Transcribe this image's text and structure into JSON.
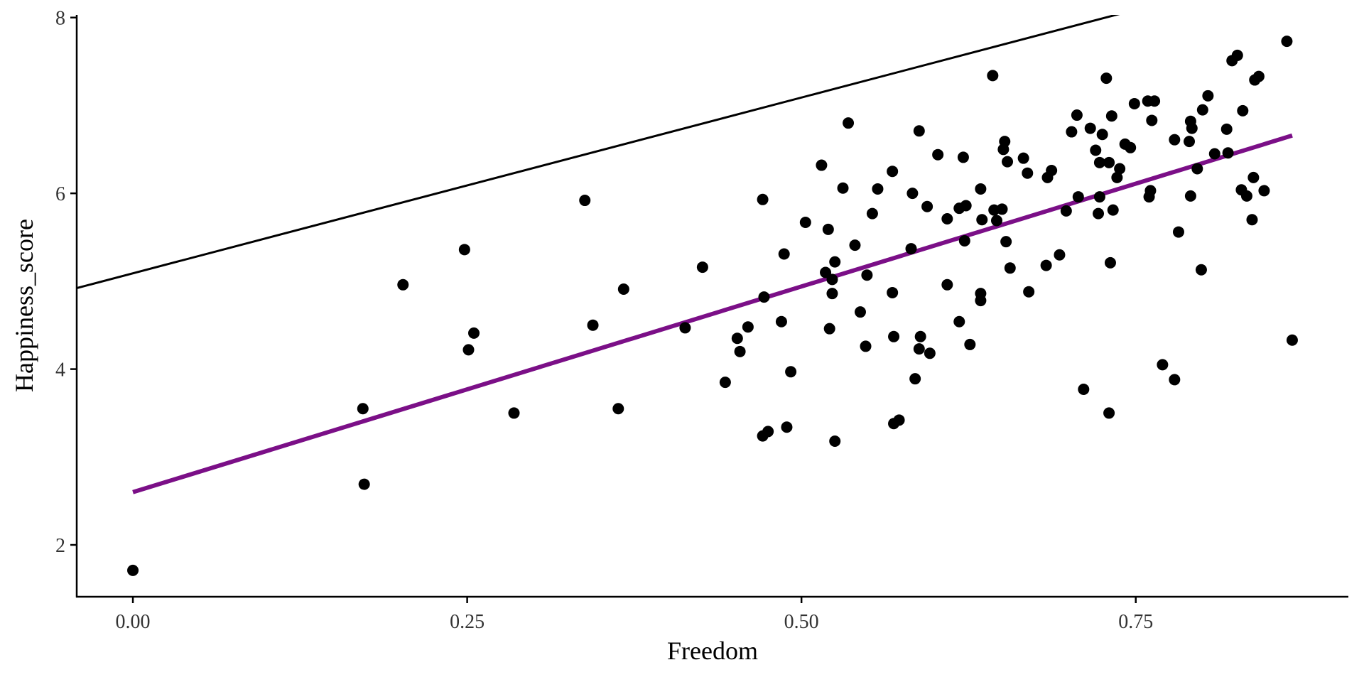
{
  "chart_data": {
    "type": "scatter",
    "title": "",
    "xlabel": "Freedom",
    "ylabel": "Happiness_score",
    "xlim": [
      -0.042,
      0.909
    ],
    "ylim": [
      1.41,
      8.03
    ],
    "xticks": [
      0,
      0.25,
      0.5,
      0.75
    ],
    "xtick_labels": [
      "0.00",
      "0.25",
      "0.50",
      "0.75"
    ],
    "yticks": [
      2,
      4,
      6,
      8
    ],
    "ytick_labels": [
      "2",
      "4",
      "6",
      "8"
    ],
    "grid": false,
    "colors": {
      "points": "#000000",
      "fit_line": "#7B0F87",
      "reference_line": "#000000"
    },
    "lines": [
      {
        "role": "reference",
        "intercept": 5.09,
        "slope": 4.0,
        "color": "#000000"
      },
      {
        "role": "fit",
        "intercept": 2.6,
        "slope": 4.68,
        "x_range": [
          0,
          0.867
        ],
        "color": "#7B0F87"
      }
    ],
    "points": [
      [
        0,
        1.71
      ],
      [
        0.172,
        3.55
      ],
      [
        0.173,
        2.69
      ],
      [
        0.202,
        4.96
      ],
      [
        0.248,
        5.36
      ],
      [
        0.251,
        4.22
      ],
      [
        0.255,
        4.41
      ],
      [
        0.285,
        3.5
      ],
      [
        0.338,
        5.92
      ],
      [
        0.344,
        4.5
      ],
      [
        0.363,
        3.55
      ],
      [
        0.367,
        4.91
      ],
      [
        0.413,
        4.47
      ],
      [
        0.426,
        5.16
      ],
      [
        0.443,
        3.85
      ],
      [
        0.452,
        4.35
      ],
      [
        0.454,
        4.2
      ],
      [
        0.46,
        4.48
      ],
      [
        0.471,
        5.93
      ],
      [
        0.472,
        4.82
      ],
      [
        0.471,
        3.24
      ],
      [
        0.475,
        3.29
      ],
      [
        0.485,
        4.54
      ],
      [
        0.487,
        5.31
      ],
      [
        0.489,
        3.34
      ],
      [
        0.492,
        3.97
      ],
      [
        0.503,
        5.67
      ],
      [
        0.515,
        6.32
      ],
      [
        0.518,
        5.1
      ],
      [
        0.52,
        5.59
      ],
      [
        0.521,
        4.46
      ],
      [
        0.523,
        5.02
      ],
      [
        0.523,
        4.86
      ],
      [
        0.525,
        5.22
      ],
      [
        0.525,
        3.18
      ],
      [
        0.531,
        6.06
      ],
      [
        0.535,
        6.8
      ],
      [
        0.54,
        5.41
      ],
      [
        0.544,
        4.65
      ],
      [
        0.549,
        5.07
      ],
      [
        0.548,
        4.26
      ],
      [
        0.553,
        5.77
      ],
      [
        0.557,
        6.05
      ],
      [
        0.568,
        6.25
      ],
      [
        0.568,
        4.87
      ],
      [
        0.569,
        4.37
      ],
      [
        0.569,
        3.38
      ],
      [
        0.573,
        3.42
      ],
      [
        0.582,
        5.37
      ],
      [
        0.583,
        6.0
      ],
      [
        0.585,
        3.89
      ],
      [
        0.588,
        6.71
      ],
      [
        0.589,
        4.37
      ],
      [
        0.588,
        4.23
      ],
      [
        0.594,
        5.85
      ],
      [
        0.596,
        4.18
      ],
      [
        0.602,
        6.44
      ],
      [
        0.609,
        5.71
      ],
      [
        0.609,
        4.96
      ],
      [
        0.618,
        5.83
      ],
      [
        0.618,
        4.54
      ],
      [
        0.621,
        6.41
      ],
      [
        0.622,
        5.46
      ],
      [
        0.623,
        5.86
      ],
      [
        0.626,
        4.28
      ],
      [
        0.634,
        6.05
      ],
      [
        0.634,
        4.86
      ],
      [
        0.634,
        4.78
      ],
      [
        0.635,
        5.7
      ],
      [
        0.643,
        7.34
      ],
      [
        0.644,
        5.81
      ],
      [
        0.646,
        5.69
      ],
      [
        0.65,
        5.82
      ],
      [
        0.651,
        6.5
      ],
      [
        0.652,
        6.59
      ],
      [
        0.653,
        5.45
      ],
      [
        0.654,
        6.36
      ],
      [
        0.656,
        5.15
      ],
      [
        0.666,
        6.4
      ],
      [
        0.669,
        6.23
      ],
      [
        0.67,
        4.88
      ],
      [
        0.683,
        5.18
      ],
      [
        0.684,
        6.18
      ],
      [
        0.687,
        6.26
      ],
      [
        0.693,
        5.3
      ],
      [
        0.698,
        5.8
      ],
      [
        0.702,
        6.7
      ],
      [
        0.706,
        6.89
      ],
      [
        0.707,
        5.96
      ],
      [
        0.711,
        3.77
      ],
      [
        0.716,
        6.74
      ],
      [
        0.72,
        6.49
      ],
      [
        0.722,
        5.77
      ],
      [
        0.723,
        6.35
      ],
      [
        0.723,
        5.96
      ],
      [
        0.725,
        6.67
      ],
      [
        0.728,
        7.31
      ],
      [
        0.73,
        6.35
      ],
      [
        0.73,
        3.5
      ],
      [
        0.731,
        5.21
      ],
      [
        0.732,
        6.88
      ],
      [
        0.733,
        5.81
      ],
      [
        0.736,
        6.18
      ],
      [
        0.738,
        6.28
      ],
      [
        0.742,
        6.56
      ],
      [
        0.746,
        6.52
      ],
      [
        0.749,
        7.02
      ],
      [
        0.759,
        7.05
      ],
      [
        0.76,
        5.96
      ],
      [
        0.761,
        6.03
      ],
      [
        0.762,
        6.83
      ],
      [
        0.764,
        7.05
      ],
      [
        0.77,
        4.05
      ],
      [
        0.779,
        6.61
      ],
      [
        0.779,
        3.88
      ],
      [
        0.782,
        5.56
      ],
      [
        0.79,
        6.59
      ],
      [
        0.791,
        6.82
      ],
      [
        0.791,
        5.97
      ],
      [
        0.792,
        6.74
      ],
      [
        0.796,
        6.28
      ],
      [
        0.799,
        5.13
      ],
      [
        0.8,
        6.95
      ],
      [
        0.804,
        7.11
      ],
      [
        0.809,
        6.45
      ],
      [
        0.818,
        6.73
      ],
      [
        0.819,
        6.46
      ],
      [
        0.822,
        7.51
      ],
      [
        0.826,
        7.57
      ],
      [
        0.829,
        6.04
      ],
      [
        0.83,
        6.94
      ],
      [
        0.833,
        5.97
      ],
      [
        0.837,
        5.7
      ],
      [
        0.838,
        6.18
      ],
      [
        0.839,
        7.29
      ],
      [
        0.842,
        7.33
      ],
      [
        0.846,
        6.03
      ],
      [
        0.863,
        7.73
      ],
      [
        0.867,
        4.33
      ]
    ]
  }
}
